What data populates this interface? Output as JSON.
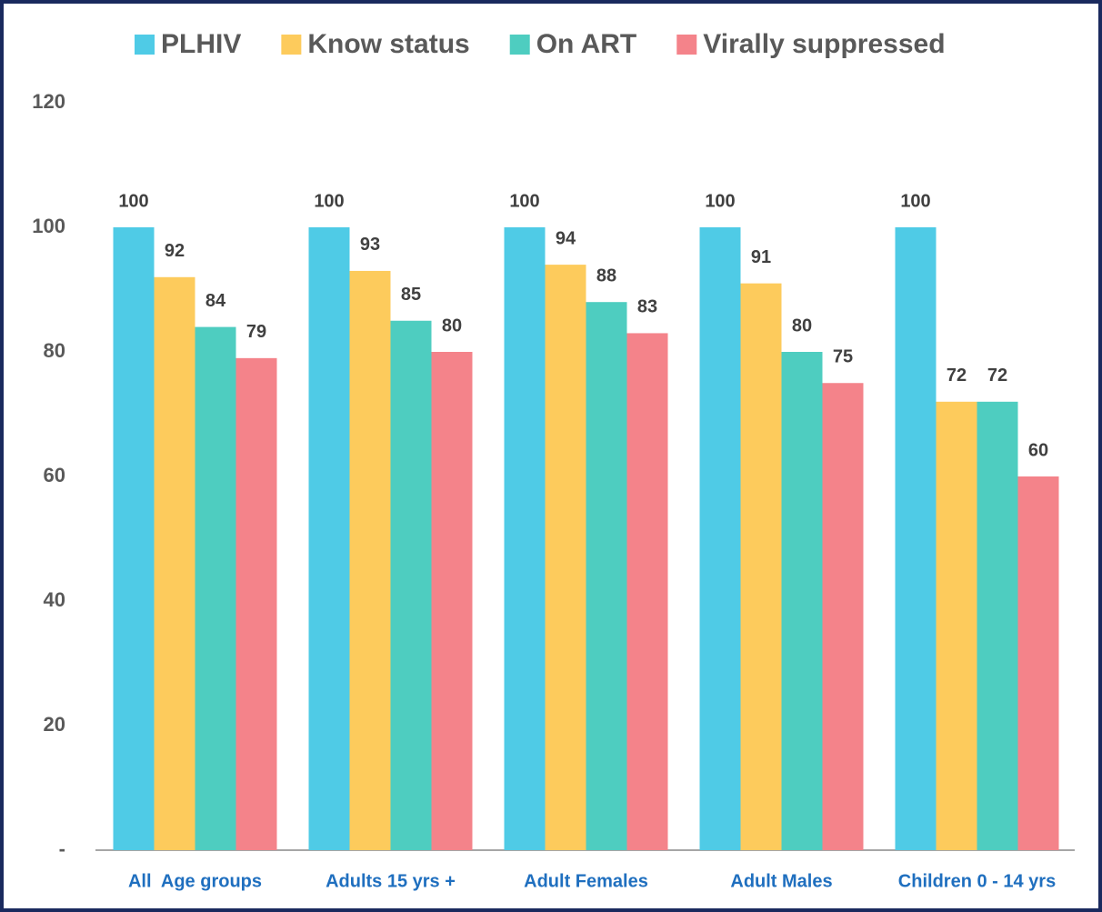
{
  "chart_data": {
    "type": "bar",
    "categories": [
      "All  Age groups",
      "Adults 15 yrs +",
      "Adult Females",
      "Adult Males",
      "Children 0 - 14 yrs"
    ],
    "series": [
      {
        "name": "PLHIV",
        "color": "#4fcbe6",
        "values": [
          100,
          100,
          100,
          100,
          100
        ]
      },
      {
        "name": "Know status",
        "color": "#fdcb5c",
        "values": [
          92,
          93,
          94,
          91,
          72
        ]
      },
      {
        "name": "On ART",
        "color": "#4ecdc0",
        "values": [
          84,
          85,
          88,
          80,
          72
        ]
      },
      {
        "name": "Virally suppressed",
        "color": "#f4838a",
        "values": [
          79,
          80,
          83,
          75,
          60
        ]
      }
    ],
    "ylim": [
      0,
      120
    ],
    "yticks": [
      {
        "value": 0,
        "label": "-"
      },
      20,
      40,
      60,
      80,
      100,
      120
    ],
    "legend": "top"
  }
}
